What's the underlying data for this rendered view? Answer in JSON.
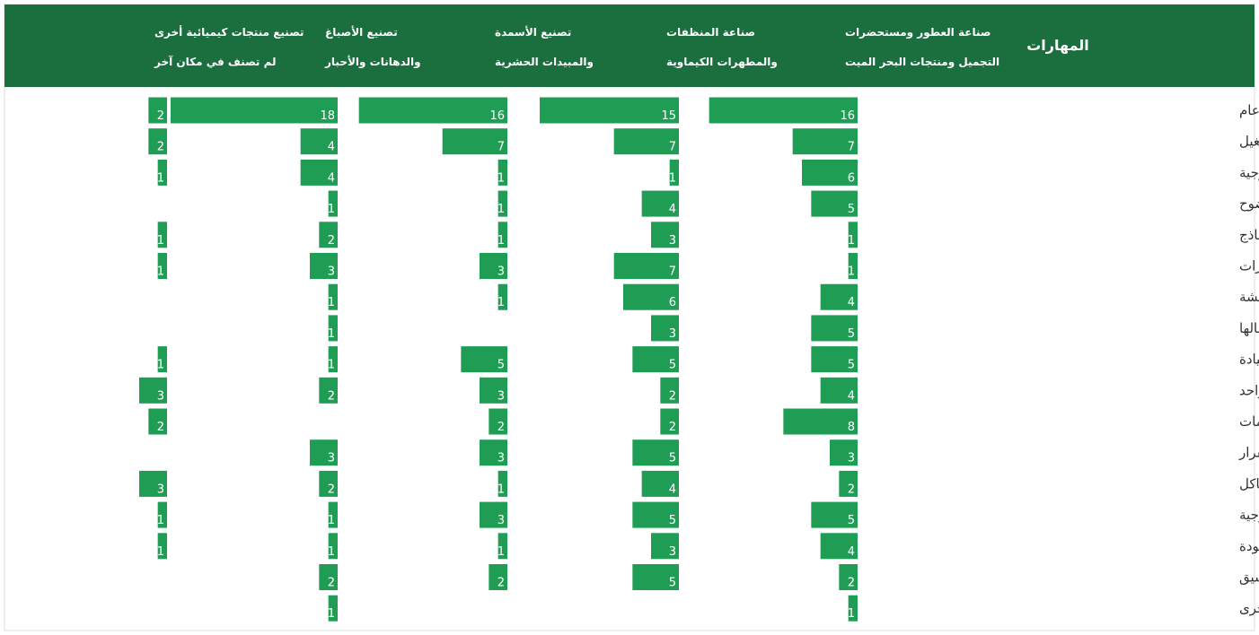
{
  "chart_data": {
    "type": "bar",
    "category_header": "المهارات",
    "categories": [
      "المهارات التقنية المطلوبة لهذه الوظيفة بشكل عام",
      "المهارات الفنية المتعلقة ببعض المعدات أو التشغيل",
      "المعلومات التقنية أو العملية أو التكنولوجية",
      "فهم وكتابة المستندات بوضوح",
      "القدرة على حساب وقراءة النماذج",
      "القدرة على تعلم المهارات",
      "مهارات المناقشة",
      "الحصول على المعلومات وفهمها وإيصالها",
      "مهارات القيادة",
      "العمل بروح الفريق الواحد",
      "مهارات تكنولوجيا المعلومات",
      "مهارات اتخاذ القرار",
      "مهارات حل المشاكل",
      "الاستخدام الفعال للمعدات والأدوات التكنولوجية",
      "القدرة على العمل وفقًا للجودة",
      "التخطيط والتنسيق",
      "مهارات اخرى"
    ],
    "color": "#1f9d55",
    "xlim": [
      0,
      18
    ],
    "series": [
      {
        "name": [
          "صناعة العطور ومستحضرات",
          "التجميل ومنتجات البحر الميت"
        ],
        "values": [
          16,
          7,
          6,
          5,
          1,
          1,
          4,
          5,
          5,
          4,
          8,
          3,
          2,
          5,
          4,
          2,
          1
        ]
      },
      {
        "name": [
          "صناعة المنظفات",
          "والمطهرات الكيماوية"
        ],
        "values": [
          15,
          7,
          1,
          4,
          3,
          7,
          6,
          3,
          5,
          2,
          2,
          5,
          4,
          5,
          3,
          5,
          null
        ]
      },
      {
        "name": [
          "تصنيع الأسمدة",
          "والمبيدات الحشرية"
        ],
        "values": [
          16,
          7,
          1,
          1,
          1,
          3,
          1,
          null,
          5,
          3,
          2,
          3,
          1,
          3,
          1,
          2,
          null
        ]
      },
      {
        "name": [
          "تصنيع الأصباغ",
          "والدهانات والأحبار"
        ],
        "values": [
          18,
          4,
          4,
          1,
          2,
          3,
          1,
          1,
          1,
          2,
          null,
          3,
          2,
          1,
          1,
          2,
          1
        ]
      },
      {
        "name": [
          "تصنيع منتجات كيميائية أخرى",
          "لم تصنف في مكان آخر"
        ],
        "values": [
          2,
          2,
          1,
          null,
          1,
          1,
          null,
          null,
          1,
          3,
          2,
          null,
          3,
          1,
          1,
          null,
          null
        ]
      }
    ]
  }
}
